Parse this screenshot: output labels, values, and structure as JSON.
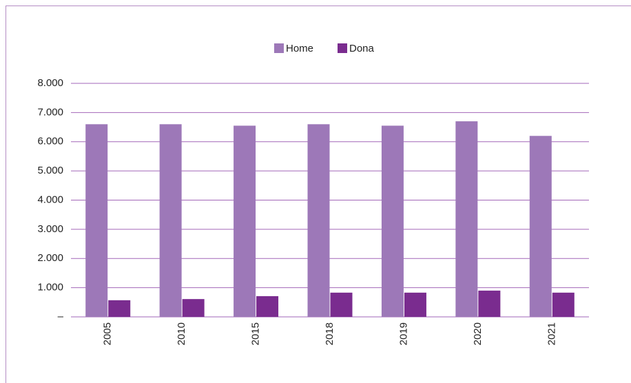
{
  "chart_data": {
    "type": "bar",
    "categories": [
      "2005",
      "2010",
      "2015",
      "2018",
      "2019",
      "2020",
      "2021"
    ],
    "series": [
      {
        "name": "Home",
        "color": "#9d78b8",
        "values": [
          6600,
          6600,
          6550,
          6600,
          6550,
          6700,
          6200
        ]
      },
      {
        "name": "Dona",
        "color": "#7a2c8f",
        "values": [
          570,
          610,
          710,
          830,
          830,
          900,
          830
        ]
      }
    ],
    "ylim": [
      0,
      8000
    ],
    "yticks": [
      {
        "value": 0,
        "label": "–"
      },
      {
        "value": 1000,
        "label": "1.000"
      },
      {
        "value": 2000,
        "label": "2.000"
      },
      {
        "value": 3000,
        "label": "3.000"
      },
      {
        "value": 4000,
        "label": "4.000"
      },
      {
        "value": 5000,
        "label": "5.000"
      },
      {
        "value": 6000,
        "label": "6.000"
      },
      {
        "value": 7000,
        "label": "7.000"
      },
      {
        "value": 8000,
        "label": "8.000"
      }
    ],
    "grid": true,
    "legend": "top"
  }
}
